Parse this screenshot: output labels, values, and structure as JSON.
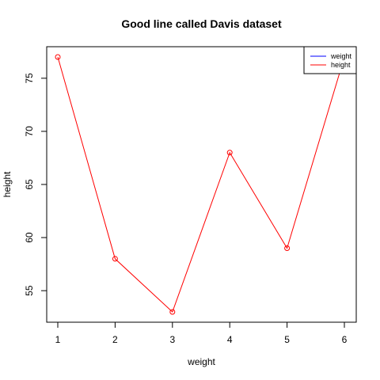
{
  "chart_data": {
    "type": "line",
    "title": "Good line called Davis dataset",
    "xlabel": "weight",
    "ylabel": "height",
    "x": [
      1,
      2,
      3,
      4,
      5,
      6
    ],
    "xticks": [
      "1",
      "2",
      "3",
      "4",
      "5",
      "6"
    ],
    "yticks": [
      "55",
      "60",
      "65",
      "70",
      "75"
    ],
    "xlim": [
      1,
      6
    ],
    "ylim": [
      53,
      77
    ],
    "grid": false,
    "series": [
      {
        "name": "height",
        "color": "#ff0000",
        "marker": "open-circle",
        "values": [
          77,
          58,
          53,
          68,
          59,
          77
        ]
      }
    ],
    "legend": {
      "position": "top-right",
      "entries": [
        {
          "label": "weight",
          "color": "#0000ff"
        },
        {
          "label": "height",
          "color": "#ff0000"
        }
      ]
    }
  }
}
